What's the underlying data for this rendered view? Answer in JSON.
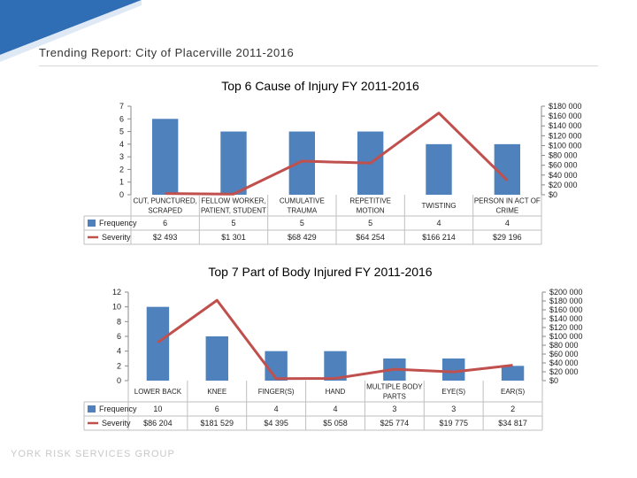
{
  "report_title": "Trending Report: City of Placerville 2011-2016",
  "footer": "YORK RISK SERVICES GROUP",
  "colors": {
    "bar": "#4f81bd",
    "line": "#c0504d",
    "corner": "#2f6db5"
  },
  "chart_data": [
    {
      "type": "bar",
      "title": "Top 6 Cause of Injury FY 2011-2016",
      "categories": [
        [
          "CUT, PUNCTURED,",
          "SCRAPED"
        ],
        [
          "FELLOW WORKER,",
          "PATIENT, STUDENT"
        ],
        [
          "CUMULATIVE",
          "TRAUMA"
        ],
        [
          "REPETITIVE",
          "MOTION"
        ],
        [
          "TWISTING"
        ],
        [
          "PERSON IN ACT OF",
          "CRIME"
        ]
      ],
      "ylim": [
        0,
        7
      ],
      "yticks": [
        "0",
        "1",
        "2",
        "3",
        "4",
        "5",
        "6",
        "7"
      ],
      "y2lim": [
        0,
        180000
      ],
      "y2ticks": [
        "$0",
        "$20 000",
        "$40 000",
        "$60 000",
        "$80 000",
        "$100 000",
        "$120 000",
        "$140 000",
        "$160 000",
        "$180 000"
      ],
      "series": [
        {
          "name": "Frequency",
          "kind": "bar",
          "values": [
            6,
            5,
            5,
            5,
            4,
            4
          ],
          "labels": [
            "6",
            "5",
            "5",
            "5",
            "4",
            "4"
          ]
        },
        {
          "name": "Severity",
          "kind": "line",
          "values": [
            2493,
            1301,
            68429,
            64254,
            166214,
            29196
          ],
          "labels": [
            "$2 493",
            "$1 301",
            "$68 429",
            "$64 254",
            "$166 214",
            "$29 196"
          ]
        }
      ]
    },
    {
      "type": "bar",
      "title": "Top 7 Part of Body Injured FY 2011-2016",
      "categories": [
        [
          "LOWER BACK"
        ],
        [
          "KNEE"
        ],
        [
          "FINGER(S)"
        ],
        [
          "HAND"
        ],
        [
          "MULTIPLE BODY",
          "PARTS"
        ],
        [
          "EYE(S)"
        ],
        [
          "EAR(S)"
        ]
      ],
      "ylim": [
        0,
        12
      ],
      "yticks": [
        "0",
        "2",
        "4",
        "6",
        "8",
        "10",
        "12"
      ],
      "y2lim": [
        0,
        200000
      ],
      "y2ticks": [
        "$0",
        "$20 000",
        "$40 000",
        "$60 000",
        "$80 000",
        "$100 000",
        "$120 000",
        "$140 000",
        "$160 000",
        "$180 000",
        "$200 000"
      ],
      "series": [
        {
          "name": "Frequency",
          "kind": "bar",
          "values": [
            10,
            6,
            4,
            4,
            3,
            3,
            2
          ],
          "labels": [
            "10",
            "6",
            "4",
            "4",
            "3",
            "3",
            "2"
          ]
        },
        {
          "name": "Severity",
          "kind": "line",
          "values": [
            86204,
            181529,
            4395,
            5058,
            25774,
            19775,
            34817
          ],
          "labels": [
            "$86 204",
            "$181 529",
            "$4 395",
            "$5 058",
            "$25 774",
            "$19 775",
            "$34 817"
          ]
        }
      ]
    }
  ]
}
